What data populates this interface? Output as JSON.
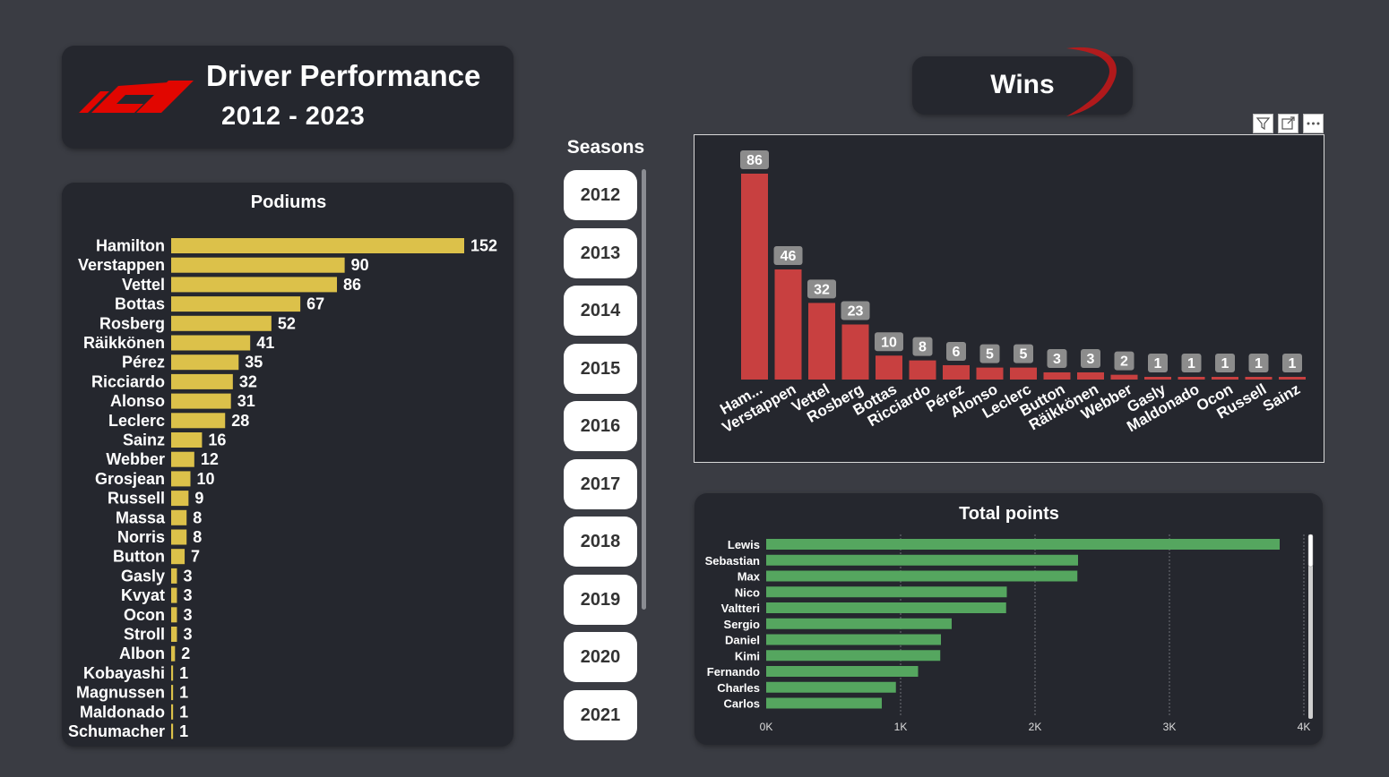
{
  "header": {
    "title": "Driver Performance",
    "years": "2012 - 2023"
  },
  "colors": {
    "podium_bar": "#dcc14a",
    "wins_bar": "#c84040",
    "points_bar": "#55a65f",
    "background": "#3a3c43",
    "card": "#25272e"
  },
  "icons": {
    "logo": "f1-logo",
    "filter": "filter-icon",
    "focus": "focus-mode-icon",
    "more": "more-options-icon"
  },
  "wins_button": {
    "label": "Wins"
  },
  "seasons": {
    "label": "Seasons",
    "items": [
      "2012",
      "2013",
      "2014",
      "2015",
      "2016",
      "2017",
      "2018",
      "2019",
      "2020",
      "2021"
    ]
  },
  "chart_data": [
    {
      "type": "bar",
      "orientation": "horizontal",
      "title": "Podiums",
      "categories": [
        "Hamilton",
        "Verstappen",
        "Vettel",
        "Bottas",
        "Rosberg",
        "Räikkönen",
        "Pérez",
        "Ricciardo",
        "Alonso",
        "Leclerc",
        "Sainz",
        "Webber",
        "Grosjean",
        "Russell",
        "Massa",
        "Norris",
        "Button",
        "Gasly",
        "Kvyat",
        "Ocon",
        "Stroll",
        "Albon",
        "Kobayashi",
        "Magnussen",
        "Maldonado",
        "Schumacher"
      ],
      "values": [
        152,
        90,
        86,
        67,
        52,
        41,
        35,
        32,
        31,
        28,
        16,
        12,
        10,
        9,
        8,
        8,
        7,
        3,
        3,
        3,
        3,
        2,
        1,
        1,
        1,
        1
      ],
      "data_labels": true
    },
    {
      "type": "bar",
      "orientation": "vertical",
      "title": "Wins",
      "categories": [
        "Ham...",
        "Verstappen",
        "Vettel",
        "Rosberg",
        "Bottas",
        "Ricciardo",
        "Pérez",
        "Alonso",
        "Leclerc",
        "Button",
        "Räikkönen",
        "Webber",
        "Gasly",
        "Maldonado",
        "Ocon",
        "Russell",
        "Sainz"
      ],
      "values": [
        86,
        46,
        32,
        23,
        10,
        8,
        6,
        5,
        5,
        3,
        3,
        2,
        1,
        1,
        1,
        1,
        1
      ],
      "data_labels": true
    },
    {
      "type": "bar",
      "orientation": "horizontal",
      "title": "Total points",
      "categories": [
        "Lewis",
        "Sebastian",
        "Max",
        "Nico",
        "Valtteri",
        "Sergio",
        "Daniel",
        "Kimi",
        "Fernando",
        "Charles",
        "Carlos"
      ],
      "values": [
        3820,
        2320,
        2315,
        1790,
        1785,
        1380,
        1300,
        1295,
        1130,
        965,
        860
      ],
      "x_ticks": [
        "0K",
        "1K",
        "2K",
        "3K",
        "4K"
      ],
      "xlim": [
        0,
        4000
      ],
      "grid": true
    }
  ]
}
